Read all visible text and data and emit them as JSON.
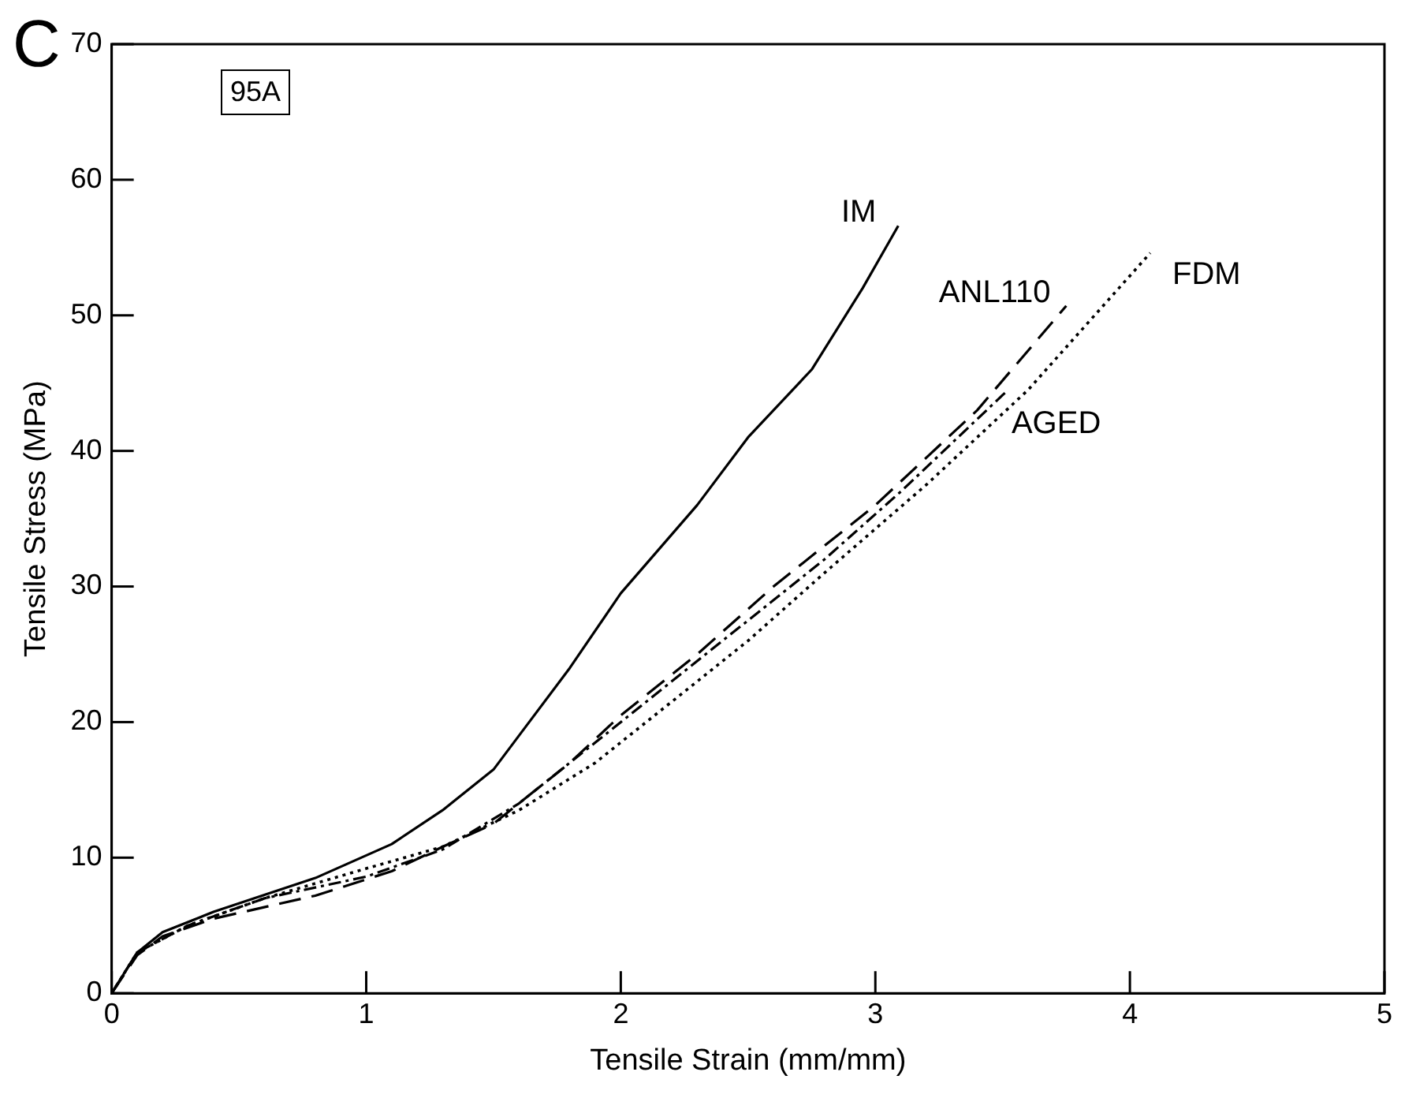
{
  "chart_data": {
    "type": "line",
    "xlabel": "Tensile Strain (mm/mm)",
    "ylabel": "Tensile Stress (MPa)",
    "annotations": [
      "C",
      "95A"
    ],
    "xlim": [
      0,
      5
    ],
    "xticks": [
      0,
      1,
      2,
      3,
      4,
      5
    ],
    "ylim": [
      0,
      70
    ],
    "yticks": [
      0,
      10,
      20,
      30,
      40,
      50,
      60,
      70
    ],
    "grid": false,
    "legend": false,
    "marker": "none",
    "series": [
      {
        "name": "IM",
        "color": "#000000",
        "line_style": "solid",
        "x": [
          0,
          0.1,
          0.2,
          0.4,
          0.8,
          1.1,
          1.3,
          1.5,
          1.6,
          1.8,
          2.0,
          2.3,
          2.5,
          2.75,
          2.95,
          3.09
        ],
        "values": [
          0,
          3,
          4.5,
          6,
          8.5,
          11,
          13.5,
          16.5,
          19,
          24,
          29.5,
          36,
          41,
          46,
          52,
          56.6
        ]
      },
      {
        "name": "ANL110",
        "color": "#000000",
        "line_style": "dashed",
        "x": [
          0,
          0.1,
          0.2,
          0.4,
          0.8,
          1.1,
          1.3,
          1.5,
          1.8,
          2.0,
          2.3,
          2.6,
          3.0,
          3.4,
          3.75
        ],
        "values": [
          0,
          2.8,
          4.2,
          5.5,
          7.2,
          9,
          10.8,
          12.5,
          17,
          20.5,
          25,
          30,
          36,
          43,
          50.7
        ]
      },
      {
        "name": "FDM",
        "color": "#000000",
        "line_style": "dotted",
        "x": [
          0,
          0.1,
          0.3,
          0.6,
          1.0,
          1.3,
          1.6,
          1.9,
          2.2,
          2.5,
          2.8,
          3.2,
          3.6,
          4.08
        ],
        "values": [
          0,
          3,
          5,
          7,
          9.2,
          10.8,
          13.5,
          17,
          21.5,
          26,
          31,
          37.5,
          44.5,
          54.6
        ]
      },
      {
        "name": "AGED",
        "color": "#000000",
        "line_style": "dashdot",
        "x": [
          0,
          0.1,
          0.3,
          0.6,
          1.0,
          1.3,
          1.6,
          1.9,
          2.2,
          2.5,
          2.8,
          3.1,
          3.51
        ],
        "values": [
          0,
          3,
          5,
          7,
          8.6,
          10.6,
          14,
          18.5,
          23,
          27.5,
          32,
          37,
          44.3
        ]
      }
    ]
  }
}
